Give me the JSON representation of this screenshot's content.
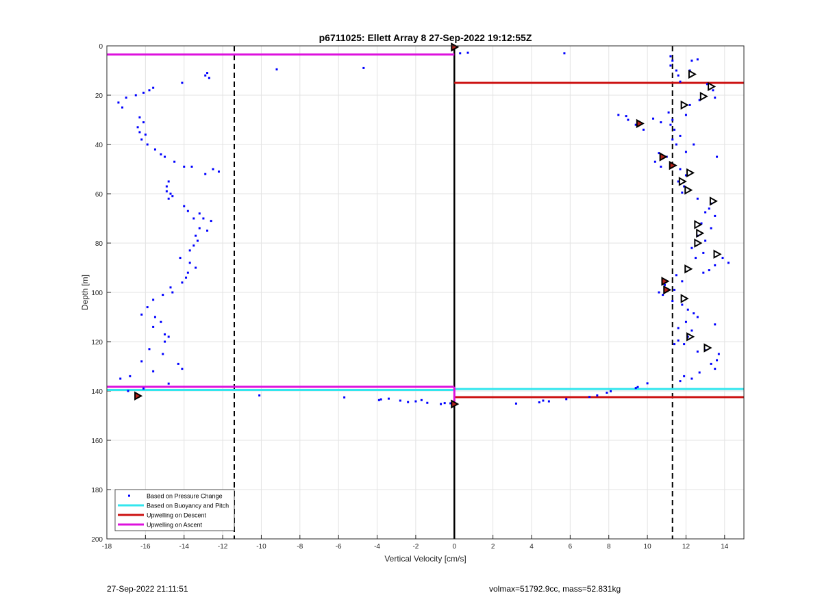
{
  "footer": {
    "left": "27-Sep-2022 21:11:51",
    "right": "volmax=51792.9cc, mass=52.831kg"
  },
  "colors": {
    "pressure": "#0000ff",
    "buoyancy": "#33e6ee",
    "descent": "#cc1111",
    "ascent": "#dd11dd",
    "grid": "#e3e3e3",
    "axis": "#262626"
  },
  "chart_data": {
    "type": "scatter",
    "title": "p6711025: Ellett Array 8 27-Sep-2022 19:12:55Z",
    "xlabel": "Vertical Velocity [cm/s]",
    "ylabel": "Depth [m]",
    "xlim": [
      -18,
      15
    ],
    "ylim": [
      0,
      200
    ],
    "y_reversed": true,
    "grid": true,
    "xticks": [
      -18,
      -16,
      -14,
      -12,
      -10,
      -8,
      -6,
      -4,
      -2,
      0,
      2,
      4,
      6,
      8,
      10,
      12,
      14
    ],
    "yticks": [
      0,
      20,
      40,
      60,
      80,
      100,
      120,
      140,
      160,
      180,
      200
    ],
    "legend_position": "bottom-left",
    "legend": [
      {
        "label": "Based on Pressure Change",
        "style": "dot",
        "color": "#0000ff"
      },
      {
        "label": "Based on Buoyancy and Pitch",
        "style": "line",
        "color": "#33e6ee"
      },
      {
        "label": "Upwelling on Descent",
        "style": "line",
        "color": "#cc1111"
      },
      {
        "label": "Upwelling on Ascent",
        "style": "line",
        "color": "#dd11dd"
      }
    ],
    "vlines": [
      {
        "x": -11.4,
        "style": "dashed",
        "color": "#000000"
      },
      {
        "x": 11.3,
        "style": "dashed",
        "color": "#000000"
      },
      {
        "x": 0,
        "style": "solid",
        "color": "#000000"
      }
    ],
    "segments": [
      {
        "series": "Upwelling on Ascent",
        "x1": -18,
        "x2": 0,
        "y": 3.5,
        "color": "#dd11dd"
      },
      {
        "series": "Upwelling on Ascent",
        "x1": -18,
        "x2": 0,
        "y": 138.3,
        "color": "#dd11dd"
      },
      {
        "series": "Upwelling on Descent",
        "x1": 0,
        "x2": 15,
        "y": 15.0,
        "color": "#cc1111"
      },
      {
        "series": "Upwelling on Descent",
        "x1": 0,
        "x2": 15,
        "y": 142.5,
        "color": "#cc1111"
      },
      {
        "series": "Based on Buoyancy and Pitch",
        "x1": -18,
        "x2": 0,
        "y": 139.6,
        "color": "#33e6ee"
      },
      {
        "series": "Based on Buoyancy and Pitch",
        "x1": 0,
        "x2": 15,
        "y": 139.2,
        "color": "#33e6ee"
      },
      {
        "series": "Upwelling on Ascent",
        "x1": 0,
        "x2": 0,
        "y1": 138.3,
        "y2": 145,
        "vertical": true,
        "color": "#dd11dd"
      }
    ],
    "series": [
      {
        "name": "Based on Pressure Change",
        "points": [
          [
            -17.4,
            23
          ],
          [
            -17.2,
            25
          ],
          [
            -17.0,
            21
          ],
          [
            -16.5,
            20
          ],
          [
            -16.1,
            19
          ],
          [
            -15.8,
            18
          ],
          [
            -15.6,
            17
          ],
          [
            -14.1,
            15
          ],
          [
            -12.9,
            12
          ],
          [
            -12.8,
            11
          ],
          [
            -12.7,
            13
          ],
          [
            -16.3,
            29
          ],
          [
            -16.1,
            31
          ],
          [
            -16.4,
            33
          ],
          [
            -16.3,
            35
          ],
          [
            -16.0,
            36
          ],
          [
            -16.2,
            38
          ],
          [
            -15.9,
            40
          ],
          [
            -15.5,
            42
          ],
          [
            -15.2,
            44
          ],
          [
            -15.0,
            45
          ],
          [
            -14.5,
            47
          ],
          [
            -14.0,
            49
          ],
          [
            -13.6,
            49
          ],
          [
            -12.9,
            52
          ],
          [
            -12.5,
            50
          ],
          [
            -12.2,
            51
          ],
          [
            -14.8,
            55
          ],
          [
            -14.9,
            57
          ],
          [
            -14.9,
            59
          ],
          [
            -14.7,
            60
          ],
          [
            -14.8,
            62
          ],
          [
            -14.6,
            61
          ],
          [
            -14.0,
            65
          ],
          [
            -13.8,
            67
          ],
          [
            -13.2,
            68
          ],
          [
            -13.5,
            70
          ],
          [
            -13.0,
            70
          ],
          [
            -12.6,
            71
          ],
          [
            -13.2,
            74
          ],
          [
            -12.8,
            75
          ],
          [
            -13.4,
            77
          ],
          [
            -13.3,
            79
          ],
          [
            -13.5,
            81
          ],
          [
            -13.7,
            83
          ],
          [
            -14.2,
            86
          ],
          [
            -13.7,
            88
          ],
          [
            -13.4,
            90
          ],
          [
            -13.8,
            92
          ],
          [
            -13.9,
            94
          ],
          [
            -14.1,
            96
          ],
          [
            -14.7,
            98
          ],
          [
            -14.6,
            100
          ],
          [
            -15.1,
            101
          ],
          [
            -15.6,
            103
          ],
          [
            -15.9,
            106
          ],
          [
            -16.2,
            109
          ],
          [
            -15.5,
            110
          ],
          [
            -15.2,
            112
          ],
          [
            -15.6,
            114
          ],
          [
            -15.0,
            117
          ],
          [
            -14.8,
            118
          ],
          [
            -15.0,
            120
          ],
          [
            -15.8,
            123
          ],
          [
            -15.1,
            125
          ],
          [
            -16.2,
            128
          ],
          [
            -14.3,
            129
          ],
          [
            -14.1,
            131
          ],
          [
            -15.6,
            132
          ],
          [
            -16.8,
            134
          ],
          [
            -17.3,
            135
          ],
          [
            -14.8,
            137
          ],
          [
            -16.1,
            139
          ],
          [
            -16.9,
            140
          ],
          [
            -10.1,
            141.8
          ],
          [
            -9.2,
            9.5
          ],
          [
            -5.7,
            142.6
          ],
          [
            -4.7,
            9.0
          ],
          [
            -3.9,
            143.7
          ],
          [
            -3.8,
            143.4
          ],
          [
            -3.4,
            143.1
          ],
          [
            -2.8,
            143.9
          ],
          [
            -2.4,
            144.5
          ],
          [
            -2.0,
            144.2
          ],
          [
            -1.7,
            143.7
          ],
          [
            -1.4,
            144.8
          ],
          [
            -0.7,
            145.3
          ],
          [
            -0.5,
            144.9
          ],
          [
            -0.2,
            145.0
          ],
          [
            0.7,
            2.8
          ],
          [
            0.3,
            3.0
          ],
          [
            5.7,
            3.0
          ],
          [
            3.2,
            145.1
          ],
          [
            4.4,
            144.6
          ],
          [
            4.6,
            143.9
          ],
          [
            4.9,
            144.2
          ],
          [
            5.8,
            143.3
          ],
          [
            7.0,
            142.4
          ],
          [
            7.4,
            141.8
          ],
          [
            7.9,
            140.7
          ],
          [
            8.1,
            140.1
          ],
          [
            9.4,
            138.8
          ],
          [
            9.5,
            138.4
          ],
          [
            10.0,
            136.9
          ],
          [
            11.2,
            4.2
          ],
          [
            11.3,
            6.0
          ],
          [
            11.2,
            8.0
          ],
          [
            11.5,
            10.0
          ],
          [
            11.6,
            12.0
          ],
          [
            11.7,
            14.5
          ],
          [
            12.3,
            6.0
          ],
          [
            12.6,
            5.5
          ],
          [
            12.2,
            10.0
          ],
          [
            13.1,
            15.5
          ],
          [
            13.4,
            18.0
          ],
          [
            13.5,
            21.0
          ],
          [
            12.7,
            22.0
          ],
          [
            12.2,
            24.0
          ],
          [
            11.1,
            27.0
          ],
          [
            12.0,
            28.0
          ],
          [
            11.3,
            30.0
          ],
          [
            8.5,
            28.0
          ],
          [
            8.9,
            28.5
          ],
          [
            9.0,
            30.0
          ],
          [
            9.4,
            32.0
          ],
          [
            9.8,
            34.0
          ],
          [
            10.3,
            29.5
          ],
          [
            10.7,
            31.0
          ],
          [
            11.2,
            32.0
          ],
          [
            11.4,
            34.0
          ],
          [
            11.7,
            36.5
          ],
          [
            11.3,
            38.0
          ],
          [
            11.5,
            40.0
          ],
          [
            12.4,
            40.0
          ],
          [
            12.0,
            43.0
          ],
          [
            10.6,
            43.5
          ],
          [
            11.0,
            45.0
          ],
          [
            13.6,
            45.0
          ],
          [
            10.4,
            47.0
          ],
          [
            10.7,
            49.0
          ],
          [
            11.7,
            50.0
          ],
          [
            12.0,
            52.5
          ],
          [
            11.6,
            55.0
          ],
          [
            11.9,
            57.0
          ],
          [
            11.8,
            59.5
          ],
          [
            12.6,
            62.0
          ],
          [
            13.3,
            64.0
          ],
          [
            13.2,
            66.0
          ],
          [
            13.0,
            67.5
          ],
          [
            13.5,
            69.0
          ],
          [
            12.8,
            72.0
          ],
          [
            13.3,
            74.0
          ],
          [
            12.6,
            77.0
          ],
          [
            13.0,
            79.0
          ],
          [
            12.3,
            82.0
          ],
          [
            12.9,
            84.0
          ],
          [
            12.5,
            86.0
          ],
          [
            13.9,
            86.0
          ],
          [
            14.2,
            88.0
          ],
          [
            13.5,
            89.0
          ],
          [
            13.2,
            91.0
          ],
          [
            12.9,
            92.0
          ],
          [
            11.5,
            93.0
          ],
          [
            11.8,
            95.5
          ],
          [
            10.9,
            97.0
          ],
          [
            11.4,
            99.0
          ],
          [
            10.6,
            100.0
          ],
          [
            10.8,
            101.0
          ],
          [
            11.3,
            103.5
          ],
          [
            11.8,
            105.0
          ],
          [
            12.1,
            107.0
          ],
          [
            12.4,
            108.5
          ],
          [
            12.6,
            110.0
          ],
          [
            12.0,
            112.0
          ],
          [
            11.6,
            114.5
          ],
          [
            12.3,
            115.5
          ],
          [
            13.5,
            113.0
          ],
          [
            12.1,
            118.0
          ],
          [
            11.6,
            119.5
          ],
          [
            11.9,
            121.0
          ],
          [
            11.4,
            121.0
          ],
          [
            12.6,
            124.0
          ],
          [
            13.0,
            123.5
          ],
          [
            13.7,
            125.0
          ],
          [
            13.6,
            127.5
          ],
          [
            13.3,
            129.0
          ],
          [
            13.5,
            131.0
          ],
          [
            12.7,
            132.5
          ],
          [
            11.9,
            134.0
          ],
          [
            11.7,
            136.0
          ],
          [
            12.3,
            135.0
          ]
        ]
      }
    ],
    "triangle_markers": [
      [
        12.3,
        11.5
      ],
      [
        13.3,
        16.5
      ],
      [
        12.9,
        20.5
      ],
      [
        11.9,
        24.0
      ],
      [
        12.2,
        51.5
      ],
      [
        11.8,
        55.0
      ],
      [
        12.1,
        58.5
      ],
      [
        13.4,
        63.0
      ],
      [
        12.6,
        72.5
      ],
      [
        12.7,
        76.0
      ],
      [
        12.6,
        80.0
      ],
      [
        13.6,
        84.5
      ],
      [
        12.1,
        90.5
      ],
      [
        11.9,
        102.5
      ],
      [
        12.2,
        118.0
      ],
      [
        13.1,
        122.5
      ]
    ],
    "highlight_markers": [
      [
        0,
        0.5
      ],
      [
        -16.4,
        142
      ],
      [
        0,
        145.3
      ],
      [
        9.6,
        31.5
      ],
      [
        10.8,
        45
      ],
      [
        11.3,
        48.5
      ],
      [
        10.9,
        95.5
      ],
      [
        11.0,
        99.0
      ]
    ]
  }
}
